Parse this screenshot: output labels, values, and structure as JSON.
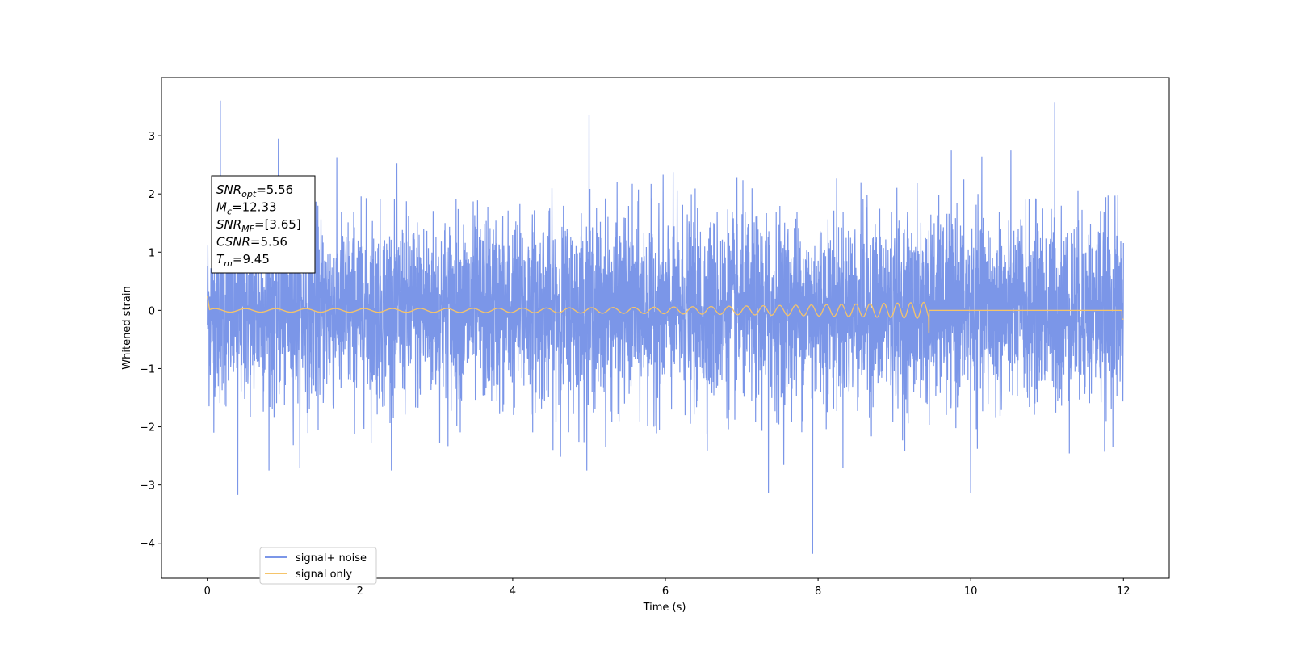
{
  "chart_data": {
    "type": "line",
    "title": "",
    "xlabel": "Time (s)",
    "ylabel": "Whitened strain",
    "xlim": [
      -0.6,
      12.6
    ],
    "ylim": [
      -4.6,
      4.0
    ],
    "xticks": [
      0,
      2,
      4,
      6,
      8,
      10,
      12
    ],
    "xtick_labels": [
      "0",
      "2",
      "4",
      "6",
      "8",
      "10",
      "12"
    ],
    "yticks": [
      3,
      2,
      1,
      0,
      -1,
      -2,
      -3,
      -4
    ],
    "ytick_labels": [
      "3",
      "2",
      "1",
      "0",
      "−1",
      "−2",
      "−3",
      "−4"
    ],
    "grid": false,
    "legend_placement": "lower-left",
    "series": [
      {
        "name": "signal+ noise",
        "color": "#7b96e8",
        "description_type": "noise",
        "x_range": [
          0,
          12
        ],
        "std": 0.8,
        "spikes": [
          {
            "x": 0.17,
            "y": 3.6
          },
          {
            "x": 0.4,
            "y": -3.17
          },
          {
            "x": 0.93,
            "y": 2.95
          },
          {
            "x": 5.0,
            "y": 3.35
          },
          {
            "x": 7.93,
            "y": -4.18
          },
          {
            "x": 11.1,
            "y": 3.58
          },
          {
            "x": 7.35,
            "y": -3.13
          },
          {
            "x": 10.0,
            "y": -3.13
          }
        ]
      },
      {
        "name": "signal only",
        "color": "#f5c46a",
        "description_type": "chirp",
        "x_range": [
          0,
          12
        ],
        "merger_time": 9.45,
        "amplitude_start": 0.03,
        "amplitude_end": 0.14
      }
    ],
    "annotation": {
      "lines": [
        {
          "main": "SNR",
          "sub": "opt",
          "rest": "=5.56"
        },
        {
          "main": "M",
          "sub": "c",
          "rest": "=12.33"
        },
        {
          "main": "SNR",
          "sub": "MF",
          "rest": "=[3.65]"
        },
        {
          "main": "CSNR",
          "sub": "",
          "rest": "=5.56"
        },
        {
          "main": "T",
          "sub": "m",
          "rest": "=9.45"
        }
      ]
    }
  }
}
